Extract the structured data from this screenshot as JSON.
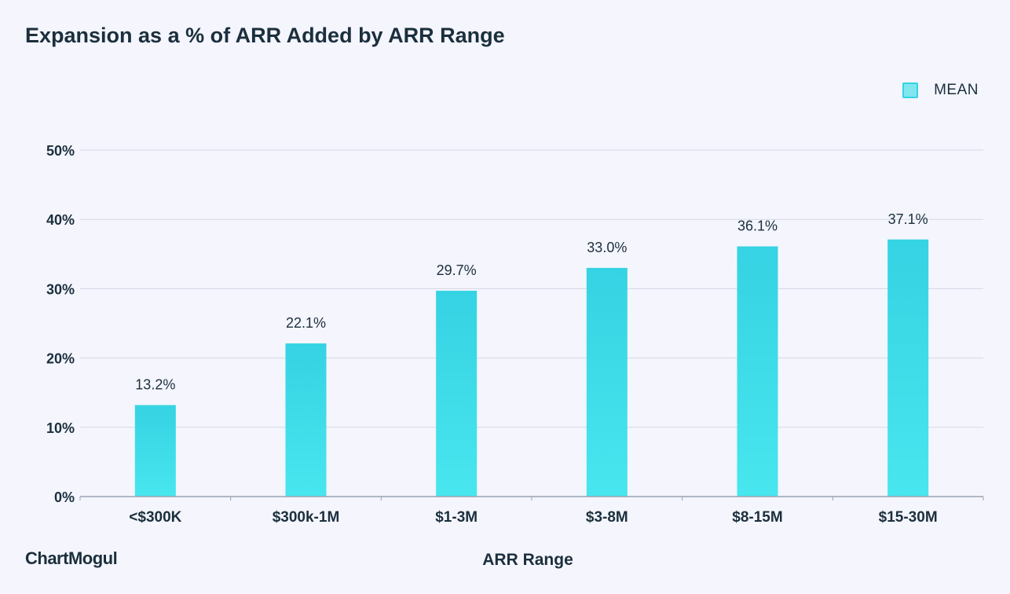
{
  "header": {
    "title": "Expansion as a % of ARR Added by ARR Range"
  },
  "branding": {
    "logo_text": "ChartMogul"
  },
  "chart_data": {
    "type": "bar",
    "title": "Expansion as a % of ARR Added by ARR Range",
    "xlabel": "ARR Range",
    "ylabel": "",
    "categories": [
      "<$300K",
      "$300k-1M",
      "$1-3M",
      "$3-8M",
      "$8-15M",
      "$15-30M"
    ],
    "series": [
      {
        "name": "MEAN",
        "values": [
          13.2,
          22.1,
          29.7,
          33.0,
          36.1,
          37.1
        ],
        "color": "#3fd8e6"
      }
    ],
    "data_labels": [
      "13.2%",
      "22.1%",
      "29.7%",
      "33.0%",
      "36.1%",
      "37.1%"
    ],
    "ylim": [
      0,
      50
    ],
    "yticks": [
      0,
      10,
      20,
      30,
      40,
      50
    ],
    "ytick_labels": [
      "0%",
      "10%",
      "20%",
      "30%",
      "40%",
      "50%"
    ],
    "grid": true,
    "legend_position": "top-right",
    "colors": {
      "bar_top": "#35d3e3",
      "bar_bottom": "#48e6ee",
      "grid": "#d5d8e6",
      "axis": "#9aa3b2",
      "text": "#1b2f3d"
    }
  }
}
